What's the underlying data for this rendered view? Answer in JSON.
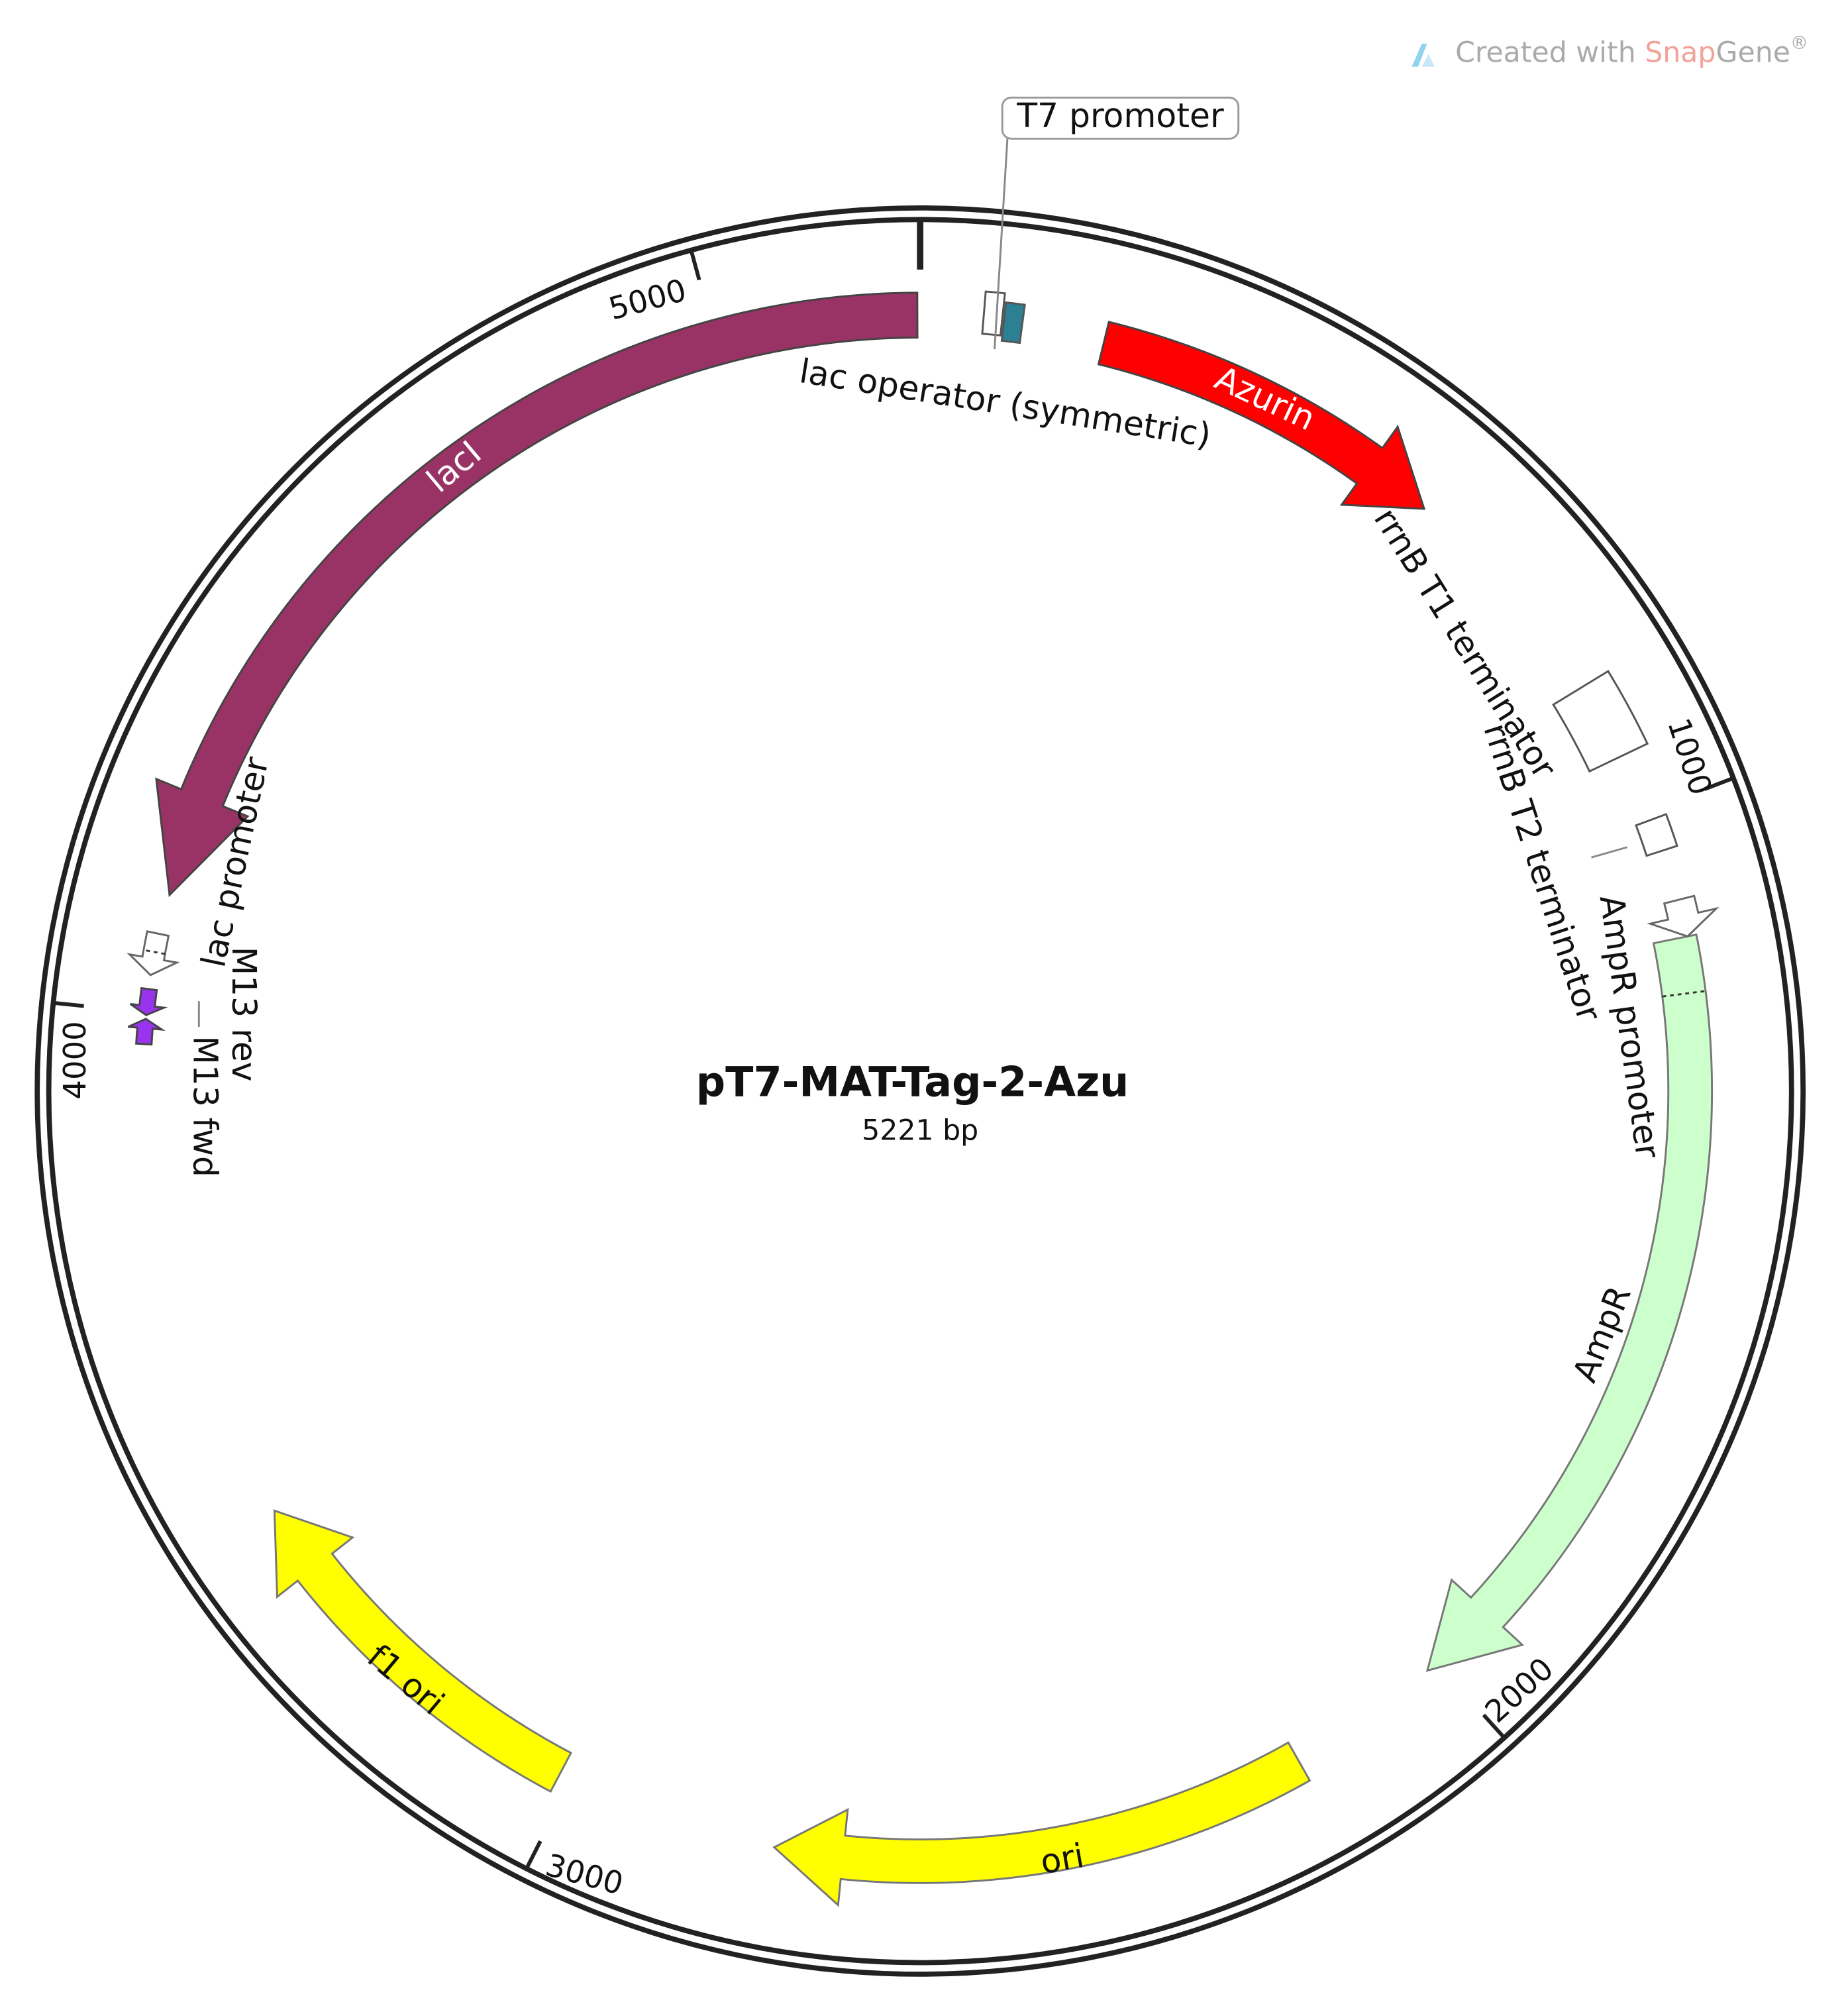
{
  "title": "pT7-MAT-Tag-2-Azu",
  "length": "5221 bp",
  "watermark": {
    "prefix": "Created with ",
    "brand_1": "Snap",
    "brand_2": "Gene",
    "mark": "®"
  },
  "features": {
    "lacI": "lacI",
    "azurin": "Azurin",
    "ampr": "AmpR",
    "ori": "ori",
    "f1_ori": "f1 ori",
    "t7_promoter": "T7 promoter",
    "lac_operator": "lac operator (symmetric)",
    "rrnb_t1": "rrnB T1 terminator",
    "rrnb_t2": "rrnB T2 terminator",
    "ampr_promoter": "AmpR promoter",
    "lac_promoter": "lac promoter",
    "m13_rev": "M13 rev",
    "m13_fwd": "M13 fwd"
  },
  "ruler": [
    "1000",
    "2000",
    "3000",
    "4000",
    "5000"
  ]
}
